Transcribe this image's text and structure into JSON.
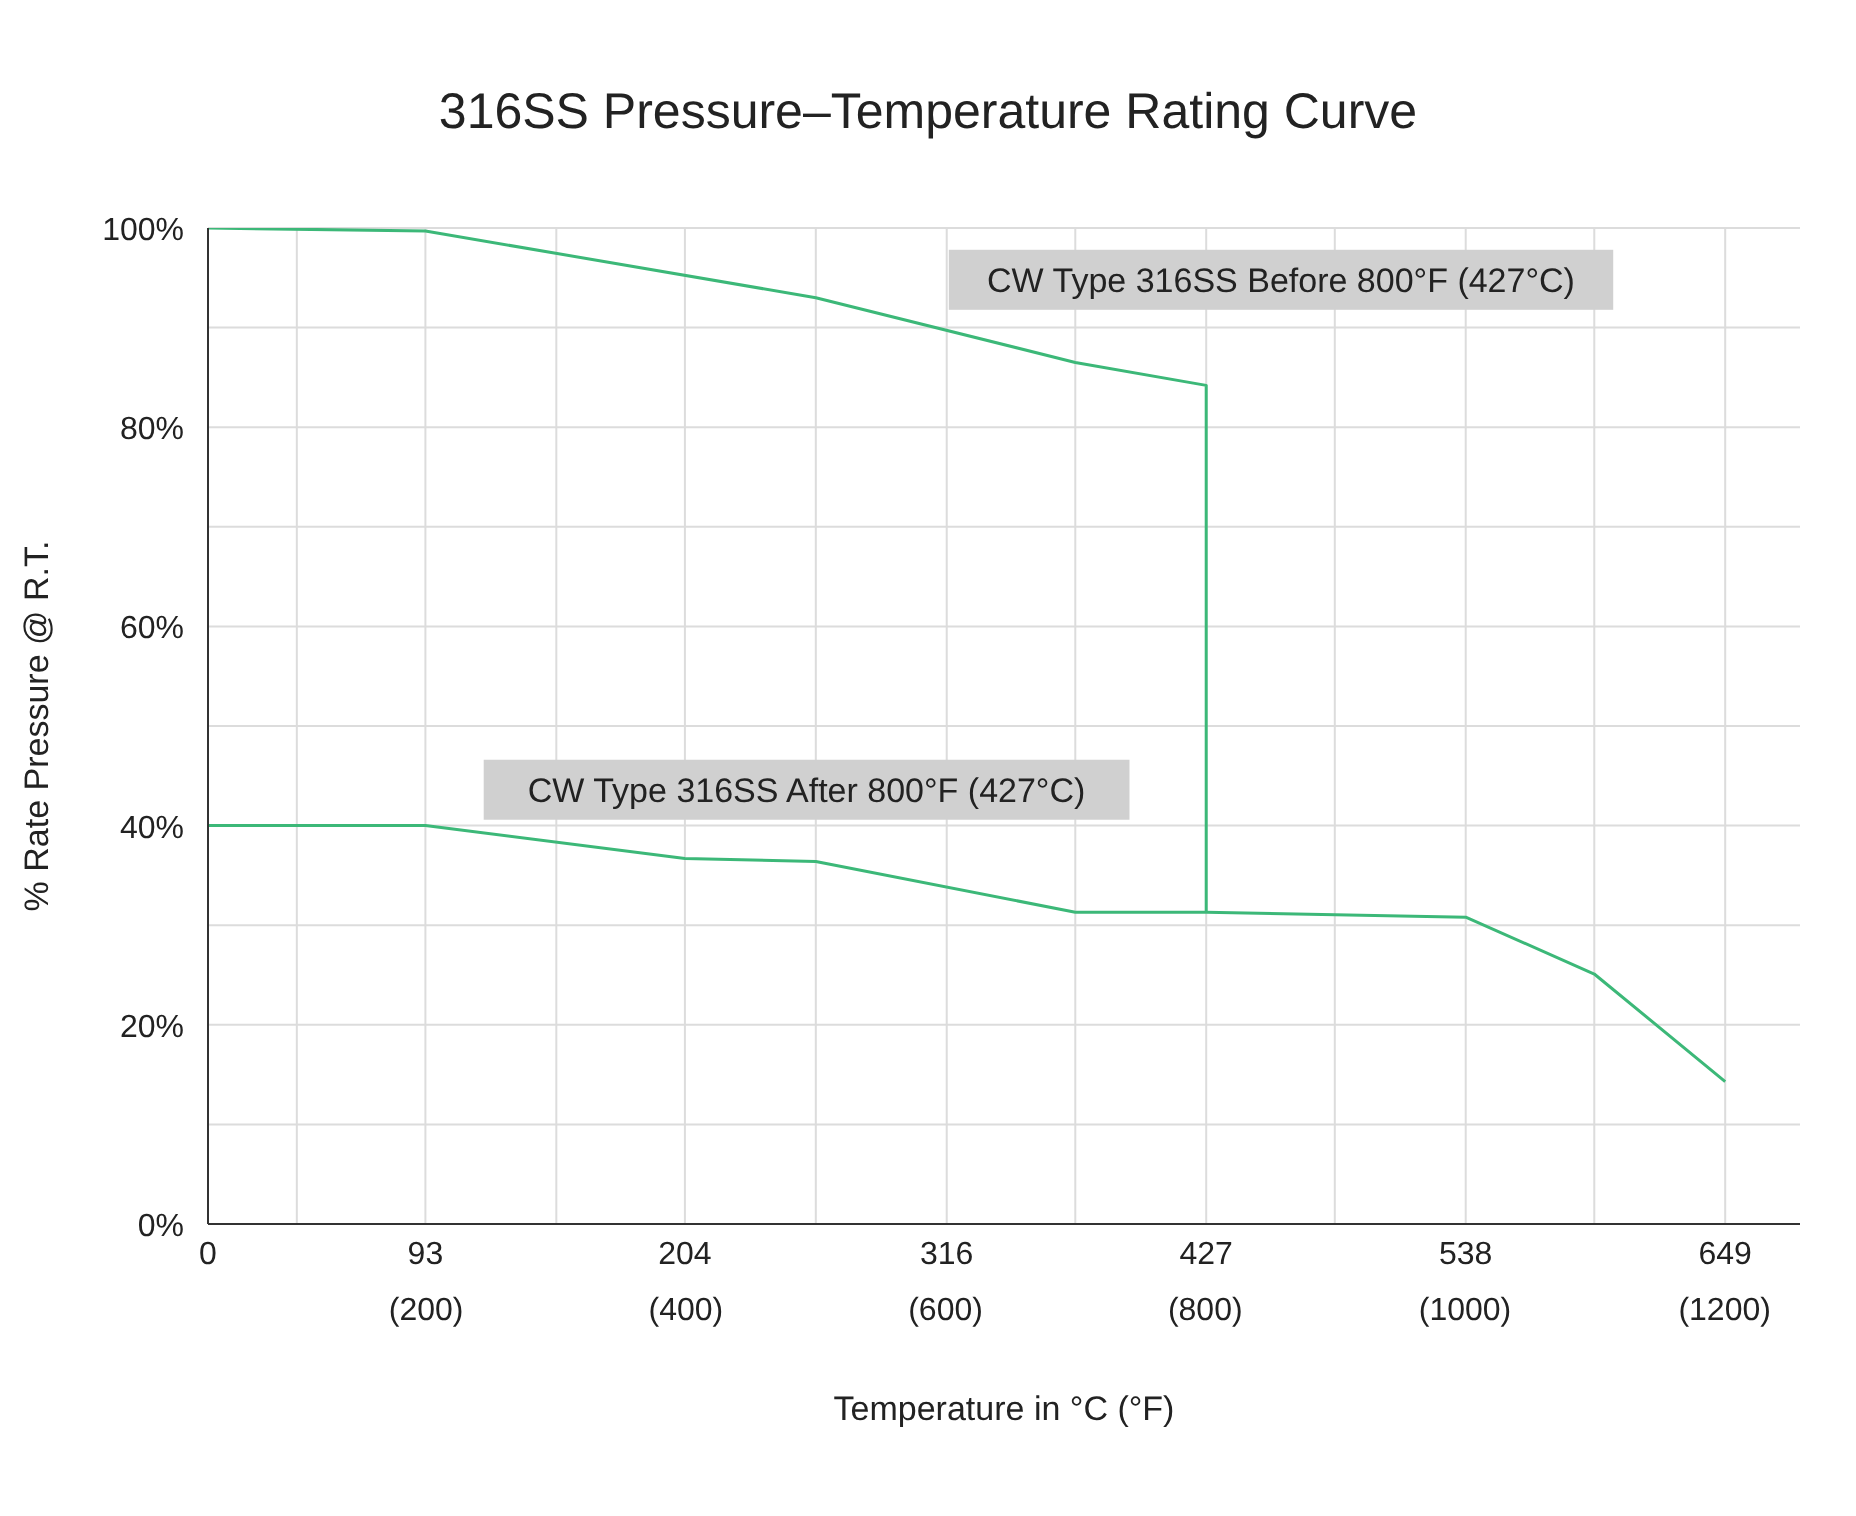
{
  "chart_data": {
    "type": "line",
    "title": "316SS Pressure–Temperature Rating Curve",
    "xlabel": "Temperature in °C (°F)",
    "ylabel": "% Rate Pressure @ R.T.",
    "series": [
      {
        "name": "CW Type 316SS Before 800°F (427°C)",
        "color": "#3cb878",
        "x": [
          0,
          93,
          260,
          371,
          427,
          427
        ],
        "values": [
          100,
          99.7,
          93.0,
          86.5,
          84.2,
          31.3
        ]
      },
      {
        "name": "CW Type 316SS After 800°F (427°C)",
        "color": "#3cb878",
        "x": [
          0,
          93,
          204,
          260,
          371,
          427,
          538,
          593,
          649
        ],
        "values": [
          40,
          40,
          36.7,
          36.4,
          31.3,
          31.3,
          30.8,
          25.1,
          14.3
        ]
      }
    ],
    "xlim": [
      0,
      681
    ],
    "xticks": [
      0,
      {
        "value": 38,
        "label": null
      },
      93,
      {
        "value": 149,
        "label": null
      },
      204,
      {
        "value": 260,
        "label": null
      },
      316,
      {
        "value": 371,
        "label": null
      },
      427,
      {
        "value": 482,
        "label": null
      },
      538,
      {
        "value": 593,
        "label": null
      },
      649
    ],
    "x2lim": [
      32,
      1258
    ],
    "x2ticks": [
      {
        "value": 200,
        "label": "(200)"
      },
      {
        "value": 400,
        "label": "(400)"
      },
      {
        "value": 600,
        "label": "(600)"
      },
      {
        "value": 800,
        "label": "(800)"
      },
      {
        "value": 1000,
        "label": "(1000)"
      },
      {
        "value": 1200,
        "label": "(1200)"
      }
    ],
    "ylim": [
      0,
      100
    ],
    "yticks": [
      {
        "value": 0,
        "label": "0%"
      },
      {
        "value": 10,
        "label": null
      },
      {
        "value": 20,
        "label": "20%"
      },
      {
        "value": 30,
        "label": null
      },
      {
        "value": 40,
        "label": "40%"
      },
      {
        "value": 50,
        "label": null
      },
      {
        "value": 60,
        "label": "60%"
      },
      {
        "value": 70,
        "label": null
      },
      {
        "value": 80,
        "label": "80%"
      },
      {
        "value": 90,
        "label": null
      },
      {
        "value": 100,
        "label": "100%"
      }
    ],
    "grid": true,
    "legend": false,
    "marker": "none",
    "line_style": "solid"
  }
}
